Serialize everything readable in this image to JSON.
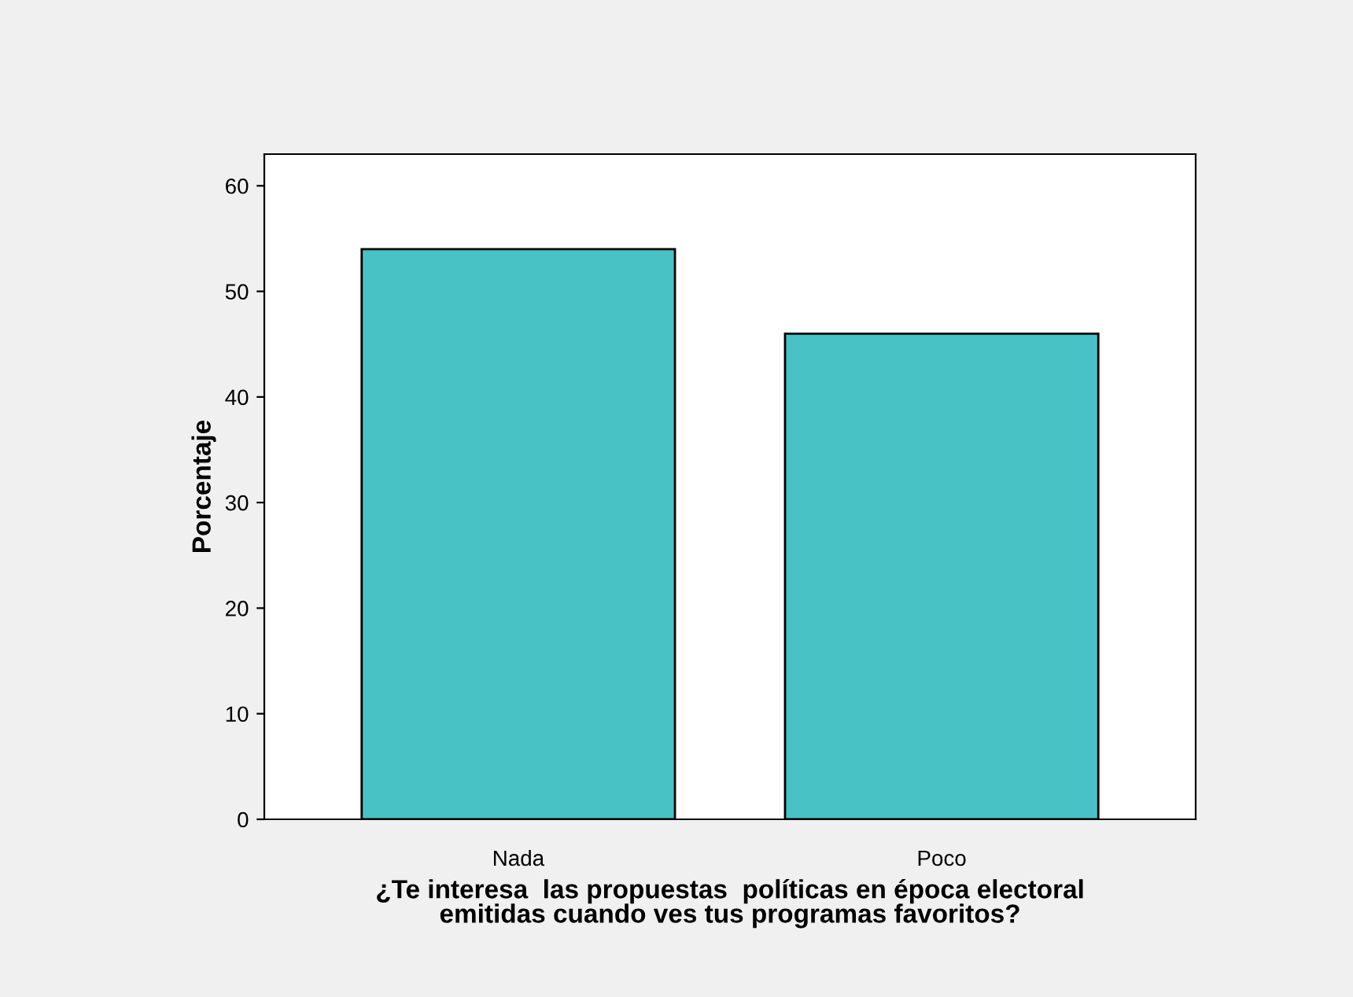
{
  "chart_data": {
    "type": "bar",
    "categories": [
      "Nada",
      "Poco"
    ],
    "values": [
      54,
      46
    ],
    "color": "#48c2c5",
    "ylim": [
      0,
      63
    ],
    "yticks": [
      0,
      10,
      20,
      30,
      40,
      50,
      60
    ],
    "ylabel": "Porcentaje",
    "xlabel": "¿Te interesa  las propuestas  políticas en época electoral\nemitidas cuando ves tus programas favoritos?",
    "grid": false
  }
}
